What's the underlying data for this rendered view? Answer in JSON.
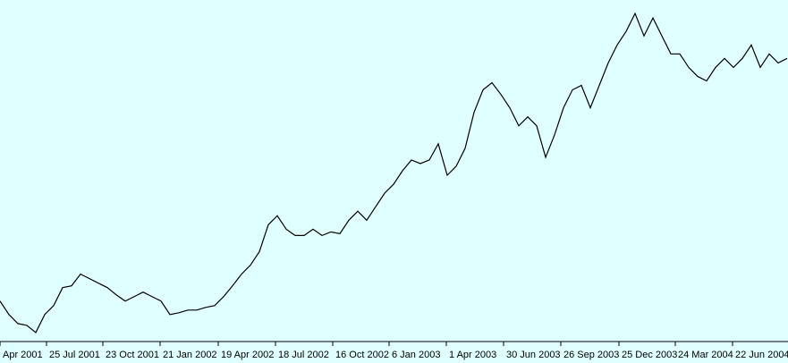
{
  "chart_data": {
    "type": "line",
    "x": [
      0,
      10,
      20,
      30,
      40,
      50,
      60,
      70,
      80,
      90,
      100,
      110,
      120,
      130,
      140,
      150,
      160,
      170,
      180,
      190,
      200,
      210,
      220,
      230,
      240,
      250,
      260,
      270,
      280,
      290,
      300,
      310,
      320,
      330,
      340,
      350,
      360,
      370,
      380,
      390,
      400,
      410,
      420,
      430,
      440,
      450,
      460,
      470,
      480,
      490,
      500,
      510,
      520,
      530,
      540,
      550,
      560,
      570,
      580,
      590,
      600,
      610,
      620,
      630,
      640,
      650,
      660,
      670,
      680,
      690,
      700,
      710,
      720,
      730,
      740,
      750,
      760,
      770,
      780,
      790,
      800,
      810,
      820,
      830,
      840,
      850,
      860,
      870,
      880
    ],
    "series": [
      {
        "color": "#000000",
        "values": [
          65,
          50,
          40,
          38,
          30,
          50,
          60,
          80,
          82,
          95,
          90,
          85,
          80,
          72,
          65,
          70,
          75,
          70,
          65,
          50,
          52,
          55,
          55,
          58,
          60,
          70,
          82,
          95,
          105,
          120,
          150,
          160,
          145,
          138,
          138,
          145,
          138,
          142,
          140,
          155,
          165,
          155,
          170,
          185,
          195,
          210,
          222,
          218,
          222,
          240,
          205,
          215,
          235,
          275,
          300,
          308,
          295,
          280,
          260,
          270,
          260,
          225,
          250,
          280,
          300,
          305,
          280,
          305,
          330,
          350,
          365,
          385,
          360,
          380,
          360,
          340,
          340,
          325,
          315,
          310,
          325,
          335,
          325,
          335,
          350,
          325,
          340,
          330,
          335
        ]
      }
    ],
    "xlim": [
      0,
      881
    ],
    "ylim": [
      20,
      400
    ],
    "xticks": [
      {
        "value": 0,
        "label": "Apr 2001"
      },
      {
        "value": 52,
        "label": "25 Jul 2001"
      },
      {
        "value": 115,
        "label": "23 Oct 2001"
      },
      {
        "value": 179,
        "label": "21 Jan 2002"
      },
      {
        "value": 244,
        "label": "19 Apr 2002"
      },
      {
        "value": 308,
        "label": "18 Jul 2002"
      },
      {
        "value": 372,
        "label": "16 Oct 2002"
      },
      {
        "value": 435,
        "label": "6 Jan 2003"
      },
      {
        "value": 499,
        "label": "1 Apr 2003"
      },
      {
        "value": 563,
        "label": "30 Jun 2003"
      },
      {
        "value": 627,
        "label": "26 Sep 2003"
      },
      {
        "value": 692,
        "label": "25 Dec 2003"
      },
      {
        "value": 755,
        "label": "24 Mar 2004"
      },
      {
        "value": 819,
        "label": "22 Jun 2004"
      }
    ],
    "background": "#e0ffff"
  }
}
